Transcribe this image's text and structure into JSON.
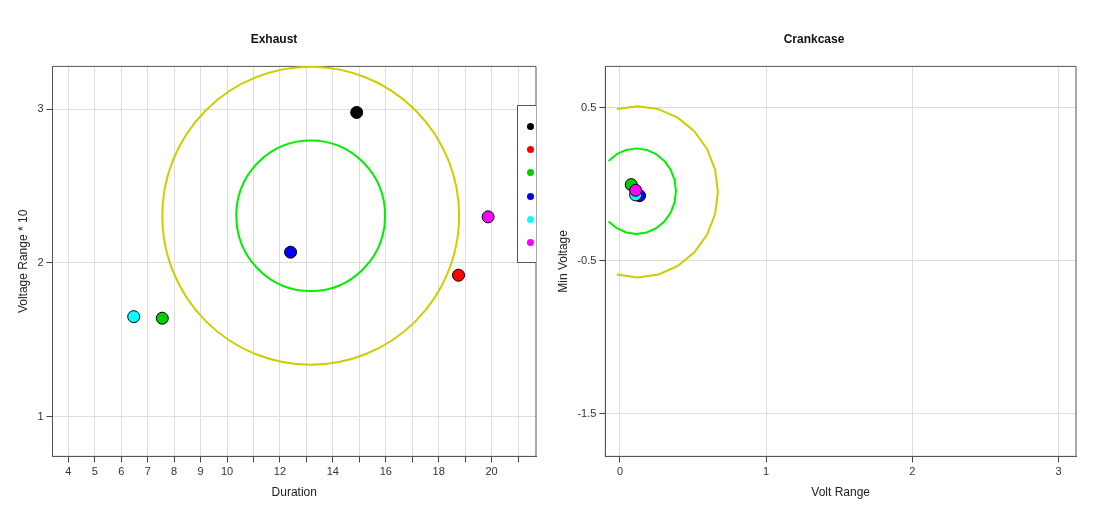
{
  "chart_data": [
    {
      "type": "scatter",
      "title": "Exhaust",
      "xlabel": "Duration",
      "ylabel": "Voltage Range * 10",
      "xlim": [
        3.4,
        21.68
      ],
      "ylim": [
        0.74,
        3.28
      ],
      "xticks": [
        4,
        5,
        6,
        7,
        8,
        9,
        10,
        {
          "value": 11,
          "label": null
        },
        12,
        {
          "value": 13,
          "label": null
        },
        14,
        {
          "value": 15,
          "label": null
        },
        16,
        {
          "value": 17,
          "label": null
        },
        18,
        {
          "value": 19,
          "label": null
        },
        20,
        {
          "value": 21,
          "label": null
        }
      ],
      "yticks": [
        1,
        2,
        3
      ],
      "grid": true,
      "marker": "circle",
      "series": [
        {
          "type": "scatter",
          "color": "#000000",
          "x": [
            14.9
          ],
          "values": [
            2.98
          ]
        },
        {
          "type": "scatter",
          "color": "#ff0000",
          "x": [
            18.75
          ],
          "values": [
            1.92
          ]
        },
        {
          "type": "scatter",
          "color": "#00cd00",
          "x": [
            7.55
          ],
          "values": [
            1.64
          ]
        },
        {
          "type": "scatter",
          "color": "#0000ff",
          "x": [
            12.4
          ],
          "values": [
            2.07
          ]
        },
        {
          "type": "scatter",
          "color": "#00ffff",
          "x": [
            6.47
          ],
          "values": [
            1.65
          ]
        },
        {
          "type": "scatter",
          "color": "#ff00ff",
          "x": [
            19.87
          ],
          "values": [
            2.3
          ]
        }
      ]
    },
    {
      "type": "scatter",
      "title": "Crankcase",
      "xlabel": "Volt Range",
      "ylabel": "Min Voltage",
      "xlim": [
        -0.1,
        3.12
      ],
      "ylim": [
        -1.78,
        0.77
      ],
      "xticks": [
        0,
        1,
        2,
        3
      ],
      "yticks": [
        0.5,
        -0.5,
        -1.5
      ],
      "grid": true,
      "marker": "circle",
      "series": [
        {
          "type": "line",
          "color": "#cdcd00",
          "marker": "none",
          "line_style": "solid",
          "x": [
            -0.022,
            0.12,
            0.262,
            0.395,
            0.509,
            0.596,
            0.651,
            0.67,
            0.651,
            0.596,
            0.509,
            0.395,
            0.262,
            0.12,
            -0.022
          ],
          "values": [
            -0.591,
            -0.61,
            -0.591,
            -0.535,
            -0.446,
            -0.33,
            -0.195,
            -0.05,
            0.095,
            0.23,
            0.346,
            0.435,
            0.491,
            0.51,
            0.491
          ]
        },
        {
          "type": "line",
          "color": "#00ee00",
          "marker": "none",
          "line_style": "solid",
          "x": [
            -0.078,
            -0.022,
            0.043,
            0.113,
            0.183,
            0.248,
            0.304,
            0.347,
            0.374,
            0.383,
            0.374,
            0.347,
            0.304,
            0.248,
            0.183,
            0.113,
            0.043,
            -0.022,
            -0.078
          ],
          "values": [
            -0.244,
            -0.288,
            -0.316,
            -0.326,
            -0.316,
            -0.288,
            -0.244,
            -0.186,
            -0.118,
            -0.046,
            0.026,
            0.094,
            0.152,
            0.196,
            0.224,
            0.234,
            0.224,
            0.196,
            0.152
          ]
        },
        {
          "type": "scatter",
          "color": "#00cd00",
          "x": [
            0.077
          ],
          "values": [
            -0.003
          ]
        },
        {
          "type": "scatter",
          "color": "#0000ff",
          "x": [
            0.134
          ],
          "values": [
            -0.075
          ]
        },
        {
          "type": "scatter",
          "color": "#00ffff",
          "x": [
            0.107
          ],
          "values": [
            -0.07
          ]
        },
        {
          "type": "scatter",
          "color": "#ff00ff",
          "x": [
            0.107
          ],
          "values": [
            -0.04
          ]
        }
      ]
    }
  ]
}
